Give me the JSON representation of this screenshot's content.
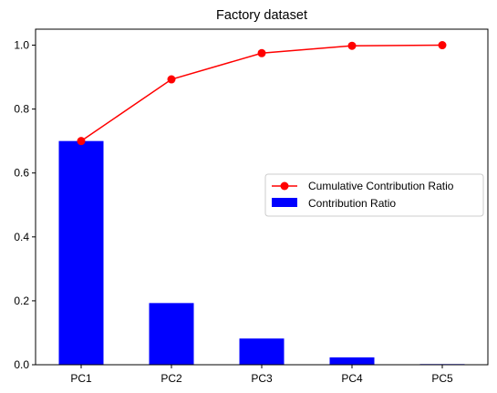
{
  "chart_data": {
    "type": "bar",
    "title": "Factory dataset",
    "xlabel": "",
    "ylabel": "",
    "categories": [
      "PC1",
      "PC2",
      "PC3",
      "PC4",
      "PC5"
    ],
    "ylim": [
      0,
      1.05
    ],
    "yticks": [
      0.0,
      0.2,
      0.4,
      0.6,
      0.8,
      1.0
    ],
    "ytick_labels": [
      "0.0",
      "0.2",
      "0.4",
      "0.6",
      "0.8",
      "1.0"
    ],
    "grid": false,
    "legend_position": "center-right",
    "series": [
      {
        "name": "Cumulative Contribution Ratio",
        "kind": "line",
        "marker": "circle",
        "color": "#ff0000",
        "values": [
          0.7,
          0.893,
          0.975,
          0.998,
          1.0
        ]
      },
      {
        "name": "Contribution Ratio",
        "kind": "bar",
        "color": "#0000ff",
        "values": [
          0.7,
          0.193,
          0.082,
          0.023,
          0.002
        ]
      }
    ]
  }
}
